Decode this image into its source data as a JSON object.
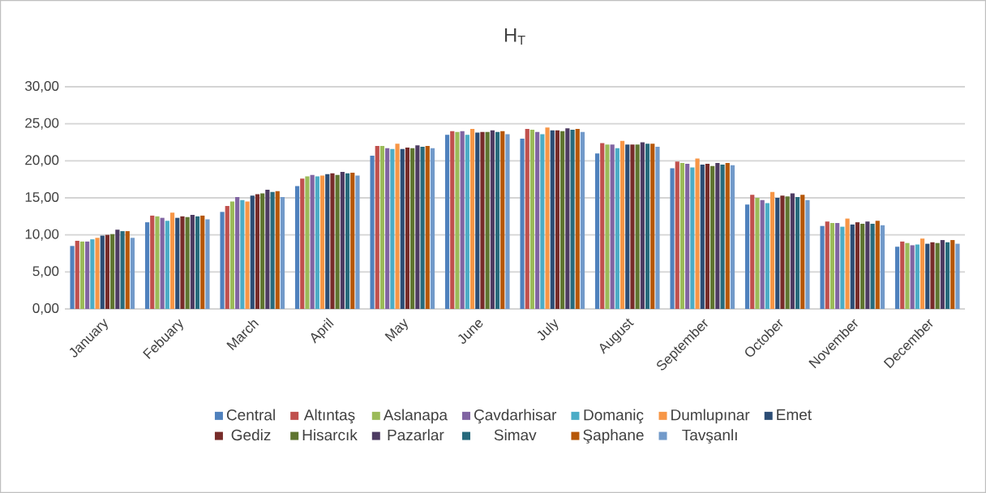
{
  "chart_data": {
    "type": "bar",
    "title": "H$_{T}$",
    "categories": [
      "January",
      "Febuary",
      "March",
      "April",
      "May",
      "June",
      "July",
      "August",
      "September",
      "October",
      "November",
      "December"
    ],
    "ylim": [
      0,
      30
    ],
    "yticks": [
      {
        "value": 0,
        "label": "0,00"
      },
      {
        "value": 5,
        "label": "5,00"
      },
      {
        "value": 10,
        "label": "10,00"
      },
      {
        "value": 15,
        "label": "15,00"
      },
      {
        "value": 20,
        "label": "20,00"
      },
      {
        "value": 25,
        "label": "25,00"
      },
      {
        "value": 30,
        "label": "30,00"
      }
    ],
    "grid": "y",
    "legend": "bottom",
    "series": [
      {
        "name": "Central",
        "color": "#4f81bd",
        "values": [
          8.5,
          11.7,
          13.1,
          16.6,
          20.7,
          23.5,
          23.0,
          21.0,
          19.0,
          14.1,
          11.2,
          8.4
        ]
      },
      {
        "name": "Altıntaş",
        "color": "#c0504d",
        "values": [
          9.2,
          12.6,
          13.9,
          17.6,
          22.0,
          24.0,
          24.3,
          22.4,
          19.9,
          15.4,
          11.8,
          9.1
        ]
      },
      {
        "name": "Aslanapa",
        "color": "#9bbb59",
        "values": [
          9.1,
          12.5,
          14.5,
          17.9,
          22.0,
          23.9,
          24.2,
          22.2,
          19.7,
          15.0,
          11.6,
          8.9
        ]
      },
      {
        "name": "Çavdarhisar",
        "color": "#8064a2",
        "values": [
          9.1,
          12.3,
          15.1,
          18.1,
          21.7,
          24.0,
          23.9,
          22.2,
          19.6,
          14.7,
          11.6,
          8.6
        ]
      },
      {
        "name": "Domaniç",
        "color": "#4bacc6",
        "values": [
          9.4,
          11.9,
          14.7,
          17.9,
          21.6,
          23.5,
          23.6,
          21.7,
          19.1,
          14.3,
          11.1,
          8.7
        ]
      },
      {
        "name": "Dumlupınar",
        "color": "#f79646",
        "values": [
          9.6,
          13.0,
          14.5,
          18.0,
          22.3,
          24.3,
          24.5,
          22.7,
          20.3,
          15.8,
          12.2,
          9.5
        ]
      },
      {
        "name": "Emet",
        "color": "#2c4d75",
        "values": [
          9.9,
          12.3,
          15.3,
          18.2,
          21.6,
          23.8,
          24.1,
          22.2,
          19.5,
          15.0,
          11.4,
          8.8
        ]
      },
      {
        "name": "Gediz",
        "color": "#772c2a",
        "values": [
          10.0,
          12.5,
          15.5,
          18.3,
          21.8,
          23.9,
          24.1,
          22.2,
          19.6,
          15.3,
          11.7,
          9.0
        ]
      },
      {
        "name": "Hisarcık",
        "color": "#5f7530",
        "values": [
          10.1,
          12.4,
          15.6,
          18.1,
          21.7,
          23.9,
          24.0,
          22.2,
          19.3,
          15.2,
          11.5,
          8.9
        ]
      },
      {
        "name": "Pazarlar",
        "color": "#4d3b62",
        "values": [
          10.7,
          12.7,
          16.1,
          18.5,
          22.1,
          24.1,
          24.4,
          22.5,
          19.7,
          15.6,
          11.8,
          9.3
        ]
      },
      {
        "name": "Simav",
        "color": "#276a7c",
        "values": [
          10.5,
          12.5,
          15.8,
          18.3,
          21.9,
          23.9,
          24.2,
          22.3,
          19.5,
          15.1,
          11.5,
          9.0
        ]
      },
      {
        "name": "Şaphane",
        "color": "#b65708",
        "values": [
          10.5,
          12.6,
          15.9,
          18.4,
          22.0,
          24.0,
          24.3,
          22.3,
          19.7,
          15.4,
          11.9,
          9.3
        ]
      },
      {
        "name": "Tavşanlı",
        "color": "#729aca",
        "values": [
          9.6,
          12.1,
          15.1,
          18.0,
          21.7,
          23.6,
          23.9,
          21.9,
          19.4,
          14.7,
          11.3,
          8.8
        ]
      }
    ]
  }
}
